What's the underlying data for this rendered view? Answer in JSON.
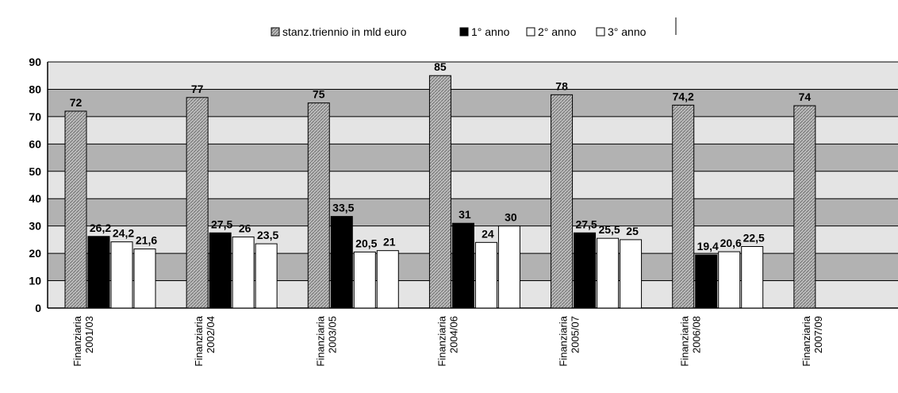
{
  "chart_data": {
    "type": "bar",
    "title": "",
    "xlabel": "",
    "ylabel": "",
    "ylim": [
      0,
      90
    ],
    "yticks": [
      0,
      10,
      20,
      30,
      40,
      50,
      60,
      70,
      80,
      90
    ],
    "grid": true,
    "legend_position": "top-center",
    "categories": [
      [
        "Finanziaria",
        "2001/03"
      ],
      [
        "Finanziaria",
        "2002/04"
      ],
      [
        "Finanziaria",
        "2003/05"
      ],
      [
        "Finanziaria",
        "2004/06"
      ],
      [
        "Finanziaria",
        "2005/07"
      ],
      [
        "Finanziaria",
        "2006/08"
      ],
      [
        "Finanziaria",
        "2007/09"
      ]
    ],
    "series": [
      {
        "name": "stanz.triennio in mld euro",
        "fill": "hatched-gray",
        "values": [
          72,
          77,
          75,
          85,
          78,
          74.2,
          74
        ],
        "labels": [
          "72",
          "77",
          "75",
          "85",
          "78",
          "74,2",
          "74"
        ]
      },
      {
        "name": "1° anno",
        "fill": "#000000",
        "values": [
          26.2,
          27.5,
          33.5,
          31,
          27.5,
          19.4,
          null
        ],
        "labels": [
          "26,2",
          "27,5",
          "33,5",
          "31",
          "27,5",
          "19,4",
          ""
        ]
      },
      {
        "name": "2° anno",
        "fill": "#ffffff",
        "values": [
          24.2,
          26,
          20.5,
          24,
          25.5,
          20.6,
          null
        ],
        "labels": [
          "24,2",
          "26",
          "20,5",
          "24",
          "25,5",
          "20,6",
          ""
        ]
      },
      {
        "name": "3° anno",
        "fill": "#ffffff",
        "values": [
          21.6,
          23.5,
          21,
          30,
          25,
          22.5,
          null
        ],
        "labels": [
          "21,6",
          "23,5",
          "21",
          "30",
          "25",
          "22,5",
          ""
        ]
      }
    ]
  },
  "colors": {
    "band_dark": "#b2b2b2",
    "band_light": "#e4e4e4",
    "hatch": "#9a9a9a",
    "border": "#000000"
  }
}
